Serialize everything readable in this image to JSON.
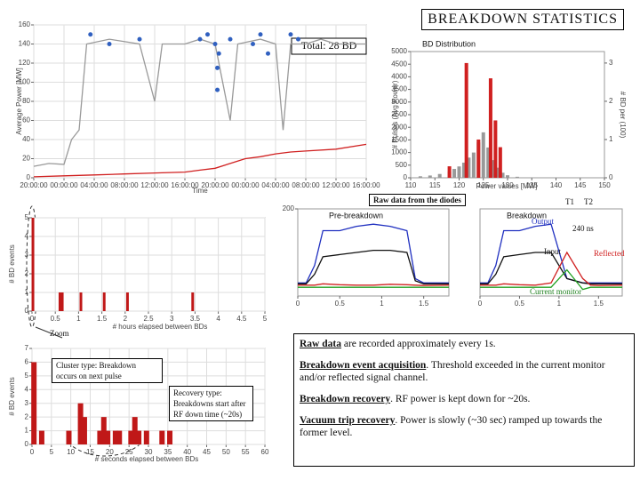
{
  "slide": {
    "title": "BREAKDOWN STATISTICS",
    "raw_title": "Raw  data from the diodes",
    "labels": {
      "output": "Output",
      "input": "Input",
      "reflected": "Reflected",
      "current": "Current monitor",
      "t1": "T1",
      "t2": "T2",
      "ns": "240 ns",
      "zoom": "Zoom"
    },
    "cluster": "Cluster type: Breakdown occurs on next pulse",
    "recovery": "Recovery type: Breakdowns start after RF down time (~20s)",
    "notes": [
      {
        "head": "Raw data",
        "text": "   are recorded approximately every 1s."
      },
      {
        "head": "Breakdown event acquisition",
        "text": ". Threshold exceeded in the current monitor and/or reflected signal channel."
      },
      {
        "head": "Breakdown recovery",
        "text": ". RF power is kept down for  ~20s."
      },
      {
        "head": "Vacuum trip recovery",
        "text": ". Power is slowly (~30 sec) ramped up towards the former level."
      }
    ]
  },
  "chart_data": [
    {
      "type": "line",
      "title": "Total: 28 BD",
      "xlabel": "Time",
      "ylabel": "Average  Power [MW]",
      "grid": true,
      "xlim": [
        0,
        44
      ],
      "xticks": [
        {
          "value": 0,
          "label": "20:00:00"
        },
        {
          "value": 4,
          "label": "00:00:00"
        },
        {
          "value": 8,
          "label": "04:00:00"
        },
        {
          "value": 12,
          "label": "08:00:00"
        },
        {
          "value": 16,
          "label": "12:00:00"
        },
        {
          "value": 20,
          "label": "16:00:00"
        },
        {
          "value": 24,
          "label": "20:00:00"
        },
        {
          "value": 28,
          "label": "00:00:00"
        },
        {
          "value": 32,
          "label": "04:00:00"
        },
        {
          "value": 36,
          "label": "08:00:00"
        },
        {
          "value": 40,
          "label": "12:00:00"
        },
        {
          "value": 44,
          "label": "16:00:00"
        }
      ],
      "ylim": [
        0,
        160
      ],
      "yticks": [
        0,
        20,
        40,
        60,
        80,
        100,
        120,
        140,
        160
      ],
      "series": [
        {
          "color": "#999999",
          "x": [
            0,
            2,
            4,
            5,
            6,
            7,
            10,
            14,
            16,
            17,
            20,
            22,
            24,
            26,
            27,
            30,
            32,
            33,
            34,
            36,
            38,
            40,
            42,
            44
          ],
          "values": [
            12,
            15,
            14,
            40,
            50,
            140,
            145,
            140,
            80,
            140,
            140,
            145,
            140,
            60,
            140,
            145,
            140,
            50,
            140,
            140,
            145,
            140,
            140,
            140
          ]
        },
        {
          "type": "scatter",
          "color": "#3060c0",
          "x": [
            7.5,
            10,
            14,
            22,
            23,
            24,
            24.5,
            24.3,
            24.3,
            26,
            29,
            30,
            31,
            34,
            35
          ],
          "values": [
            150,
            140,
            145,
            145,
            150,
            140,
            130,
            115,
            92,
            145,
            140,
            150,
            130,
            150,
            145
          ]
        },
        {
          "color": "#d02020",
          "x": [
            0,
            4,
            8,
            12,
            16,
            20,
            22,
            24,
            26,
            28,
            30,
            32,
            34,
            36,
            40,
            44
          ],
          "values": [
            1,
            2,
            3,
            4,
            5,
            6,
            8,
            10,
            15,
            20,
            22,
            25,
            27,
            28,
            30,
            35
          ]
        }
      ]
    },
    {
      "type": "bar",
      "title": "BD Distribution",
      "xlabel": "Power values [MW]",
      "ylabel": "# Pulses (Avg Power)",
      "y2label": "# BD per (100)",
      "xlim": [
        110,
        150
      ],
      "xticks": [
        110,
        115,
        120,
        125,
        130,
        135,
        140,
        145,
        150
      ],
      "ylim": [
        0,
        5000
      ],
      "yticks": [
        0,
        500,
        1000,
        1500,
        2000,
        2500,
        3000,
        3500,
        4000,
        4500,
        5000
      ],
      "y2lim": [
        0,
        3.3
      ],
      "y2ticks": [
        0,
        1,
        2,
        3
      ],
      "series": [
        {
          "color": "#999999",
          "x": [
            112,
            114,
            116,
            118,
            119,
            120,
            121,
            122,
            123,
            124,
            125,
            126,
            127,
            128,
            129,
            130,
            132
          ],
          "values": [
            60,
            90,
            150,
            250,
            350,
            450,
            600,
            800,
            1000,
            1400,
            1800,
            1200,
            700,
            400,
            200,
            100,
            40
          ]
        },
        {
          "color": "#d02020",
          "axis": "y2",
          "x": [
            118,
            121.5,
            124,
            126.5,
            127.5,
            128.5
          ],
          "values": [
            0.3,
            3,
            1,
            2.6,
            1.5,
            0.8
          ]
        }
      ]
    },
    {
      "type": "bar",
      "xlabel": "# hours elapsed between BDs",
      "ylabel": "# BD events",
      "grid": true,
      "xlim": [
        0,
        5
      ],
      "xticks": [
        0,
        0.5,
        1,
        1.5,
        2,
        2.5,
        3,
        3.5,
        4,
        4.5,
        5
      ],
      "ylim": [
        0,
        5
      ],
      "yticks": [
        0,
        1,
        2,
        3,
        4,
        5
      ],
      "series": [
        {
          "color": "#c01818",
          "x": [
            0.02,
            0.6,
            0.65,
            1.05,
            1.55,
            2.05,
            3.45
          ],
          "values": [
            5,
            1,
            1,
            1,
            1,
            1,
            1
          ]
        }
      ]
    },
    {
      "type": "bar",
      "xlabel": "# seconds elapsed between BDs",
      "ylabel": "# BD events",
      "grid": true,
      "xlim": [
        0,
        60
      ],
      "xticks": [
        0,
        5,
        10,
        15,
        20,
        25,
        30,
        35,
        40,
        45,
        50,
        55,
        60
      ],
      "ylim": [
        0,
        7
      ],
      "yticks": [
        0,
        1,
        2,
        3,
        4,
        5,
        6,
        7
      ],
      "series": [
        {
          "color": "#c01818",
          "x": [
            0.5,
            2.5,
            9.5,
            12.5,
            13.5,
            17.5,
            18.5,
            19.5,
            21.5,
            22.5,
            25.5,
            26.5,
            27.5,
            29.5,
            33.5,
            35.5
          ],
          "values": [
            6,
            1,
            1,
            3,
            2,
            1,
            2,
            1,
            1,
            1,
            1,
            2,
            1,
            1,
            1,
            1
          ]
        }
      ]
    },
    {
      "type": "line",
      "title": "Pre-breakdown",
      "xlim": [
        0,
        1.8
      ],
      "xticks": [
        0,
        0.5,
        1,
        1.5
      ],
      "ylim": [
        0,
        200
      ],
      "yticks": [
        200
      ],
      "x": [
        0,
        0.1,
        0.2,
        0.3,
        0.5,
        0.7,
        0.9,
        1.1,
        1.3,
        1.4,
        1.5,
        1.8
      ],
      "series": [
        {
          "color": "#2030c0",
          "values": [
            30,
            30,
            70,
            150,
            150,
            160,
            165,
            160,
            150,
            40,
            30,
            30
          ]
        },
        {
          "color": "#111111",
          "values": [
            28,
            28,
            50,
            90,
            95,
            100,
            105,
            105,
            100,
            35,
            28,
            28
          ]
        },
        {
          "color": "#d02020",
          "values": [
            25,
            25,
            25,
            28,
            26,
            25,
            25,
            27,
            26,
            25,
            24,
            25
          ]
        },
        {
          "color": "#20a020",
          "values": [
            20,
            20,
            20,
            20,
            20,
            20,
            20,
            20,
            20,
            20,
            20,
            20
          ]
        }
      ]
    },
    {
      "type": "line",
      "title": "Breakdown",
      "xlim": [
        0,
        1.8
      ],
      "xticks": [
        0,
        0.5,
        1,
        1.5
      ],
      "ylim": [
        0,
        200
      ],
      "x": [
        0,
        0.1,
        0.2,
        0.3,
        0.5,
        0.7,
        0.9,
        1.1,
        1.3,
        1.4,
        1.5,
        1.8
      ],
      "series": [
        {
          "color": "#2030c0",
          "values": [
            30,
            30,
            70,
            150,
            150,
            160,
            165,
            40,
            30,
            30,
            30,
            30
          ]
        },
        {
          "color": "#111111",
          "values": [
            28,
            28,
            50,
            90,
            95,
            100,
            100,
            40,
            30,
            28,
            28,
            28
          ]
        },
        {
          "color": "#d02020",
          "values": [
            25,
            25,
            25,
            28,
            26,
            25,
            30,
            100,
            40,
            25,
            24,
            25
          ]
        },
        {
          "color": "#20a020",
          "values": [
            20,
            20,
            20,
            20,
            20,
            20,
            20,
            60,
            15,
            20,
            20,
            20
          ]
        }
      ]
    }
  ]
}
